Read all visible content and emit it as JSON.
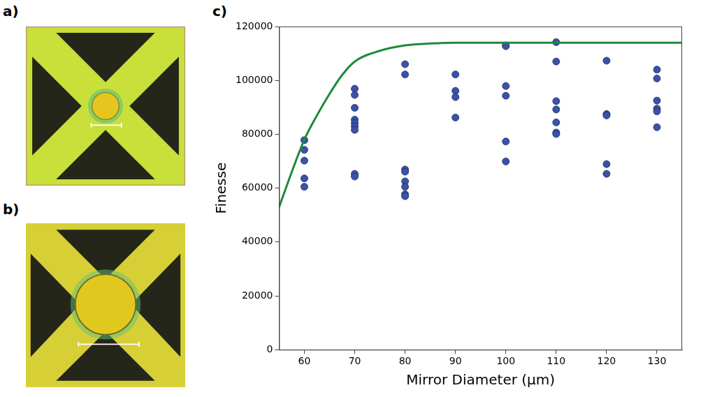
{
  "panel_labels": [
    "a)",
    "b)",
    "c)"
  ],
  "chart_data": {
    "type": "scatter",
    "x_label": "Mirror Diameter (μm)",
    "y_label": "Finesse",
    "xlim": [
      55,
      135
    ],
    "xticks": [
      60,
      70,
      80,
      90,
      100,
      110,
      120,
      130
    ],
    "ylim": [
      0,
      120000
    ],
    "yticks": [
      0,
      20000,
      40000,
      60000,
      80000,
      100000,
      120000
    ],
    "grid": false,
    "series": [
      {
        "type": "scatter",
        "color": "#3b52a6",
        "marker": "circle",
        "x": [
          60,
          60,
          60,
          60,
          60,
          70,
          70,
          70,
          70,
          70,
          70,
          70,
          70,
          70,
          80,
          80,
          80,
          80,
          80,
          80,
          80,
          80,
          90,
          90,
          90,
          90,
          100,
          100,
          100,
          100,
          100,
          100,
          110,
          110,
          110,
          110,
          110,
          110,
          110,
          120,
          120,
          120,
          120,
          120,
          130,
          130,
          130,
          130,
          130,
          130
        ],
        "values": [
          77800,
          74200,
          70200,
          63600,
          60500,
          96900,
          94600,
          89800,
          85400,
          84200,
          82900,
          81600,
          65300,
          64300,
          106000,
          102200,
          66900,
          66100,
          62500,
          60500,
          57700,
          57000,
          102200,
          96100,
          93800,
          86200,
          113000,
          112700,
          97900,
          94300,
          77300,
          69900,
          114200,
          107000,
          92300,
          89200,
          84400,
          80600,
          80100,
          107300,
          87500,
          87000,
          68900,
          65300,
          104000,
          100700,
          92500,
          89500,
          88500,
          82600
        ]
      },
      {
        "type": "line",
        "color": "#1e8a3c",
        "line_style": "solid",
        "x": [
          55,
          57.5,
          60,
          62.5,
          65,
          67.5,
          70,
          75,
          80,
          85,
          90,
          100,
          110,
          120,
          130,
          135
        ],
        "values": [
          53000,
          66000,
          78000,
          87000,
          95000,
          102000,
          107000,
          111000,
          113000,
          113700,
          114000,
          114000,
          114000,
          114000,
          114000,
          114000
        ]
      }
    ]
  }
}
